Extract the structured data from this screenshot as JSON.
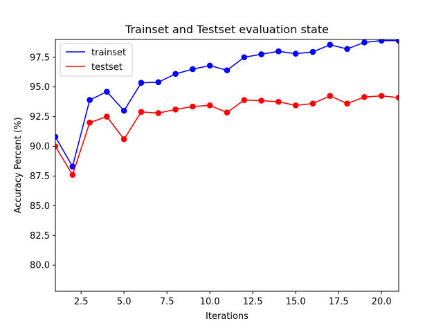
{
  "chart_data": {
    "type": "line",
    "title": "Trainset and Testset evaluation state",
    "xlabel": "Iterations",
    "ylabel": "Accuracy Percent (%)",
    "xlim": [
      1,
      21
    ],
    "ylim": [
      77.8,
      99.0
    ],
    "xticks": [
      2.5,
      5.0,
      7.5,
      10.0,
      12.5,
      15.0,
      17.5,
      20.0
    ],
    "xtick_labels": [
      "2.5",
      "5.0",
      "7.5",
      "10.0",
      "12.5",
      "15.0",
      "17.5",
      "20.0"
    ],
    "yticks": [
      80.0,
      82.5,
      85.0,
      87.5,
      90.0,
      92.5,
      95.0,
      97.5
    ],
    "ytick_labels": [
      "80.0",
      "82.5",
      "85.0",
      "87.5",
      "90.0",
      "92.5",
      "95.0",
      "97.5"
    ],
    "grid": false,
    "legend_position": "upper-left",
    "x": [
      1,
      2,
      3,
      4,
      5,
      6,
      7,
      8,
      9,
      10,
      11,
      12,
      13,
      14,
      15,
      16,
      17,
      18,
      19,
      20,
      21
    ],
    "series": [
      {
        "name": "trainset",
        "color": "#0000ff",
        "values": [
          90.8,
          88.3,
          93.9,
          94.6,
          93.0,
          95.35,
          95.4,
          96.1,
          96.5,
          96.8,
          96.4,
          97.5,
          97.75,
          98.0,
          97.8,
          97.95,
          98.55,
          98.2,
          98.75,
          98.9,
          98.9
        ]
      },
      {
        "name": "testset",
        "color": "#ff0000",
        "values": [
          90.0,
          87.6,
          92.0,
          92.5,
          90.6,
          92.9,
          92.8,
          93.1,
          93.35,
          93.45,
          92.85,
          93.9,
          93.85,
          93.75,
          93.45,
          93.6,
          94.25,
          93.6,
          94.15,
          94.25,
          94.1
        ]
      }
    ]
  }
}
